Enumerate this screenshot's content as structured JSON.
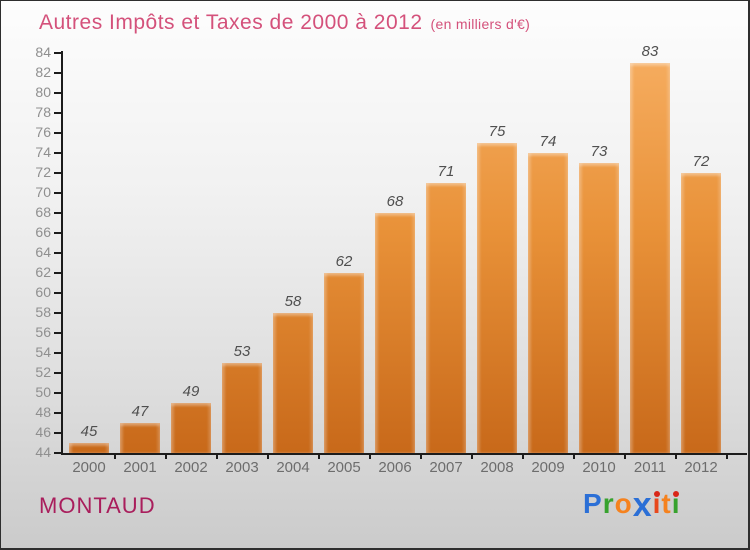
{
  "title": {
    "text": "Autres Impôts et Taxes de 2000 à 2012",
    "subtitle": "(en milliers d'€)"
  },
  "footer": {
    "location": "MONTAUD",
    "brand_name": "Proxiti"
  },
  "brand_letters": [
    {
      "glyph": "P",
      "color": "#2b6fd6"
    },
    {
      "glyph": "r",
      "color": "#37a22e"
    },
    {
      "glyph": "o",
      "color": "#f5821e"
    },
    {
      "glyph": "x",
      "color": "#2b6fd6",
      "big": true
    },
    {
      "glyph": "ı",
      "color": "#e8481c",
      "dot": "#d92718"
    },
    {
      "glyph": "t",
      "color": "#f5821e"
    },
    {
      "glyph": "ı",
      "color": "#37a22e",
      "dot": "#d92718"
    }
  ],
  "chart_data": {
    "type": "bar",
    "title": "Autres Impôts et Taxes de 2000 à 2012",
    "subtitle": "(en milliers d'€)",
    "categories": [
      "2000",
      "2001",
      "2002",
      "2003",
      "2004",
      "2005",
      "2006",
      "2007",
      "2008",
      "2009",
      "2010",
      "2011",
      "2012"
    ],
    "values": [
      45,
      47,
      49,
      53,
      58,
      62,
      68,
      71,
      75,
      74,
      73,
      83,
      72
    ],
    "xlabel": "",
    "ylabel": "",
    "ylim": [
      44,
      84
    ],
    "ytick_step": 2,
    "grid": "off",
    "legend": "none",
    "bar_color_top": "#f6ad60",
    "bar_color_bottom": "#c8691a",
    "value_label_color": "#4f4f4f",
    "axis_color": "#1c1c1c",
    "ytick_label_color": "#8f8f8f",
    "xtick_label_color": "#6d6d6d",
    "title_color": "#d4517b",
    "location_color": "#a91e5c",
    "background_top": "#fdfdfd",
    "background_bottom": "#cbcbcb"
  }
}
